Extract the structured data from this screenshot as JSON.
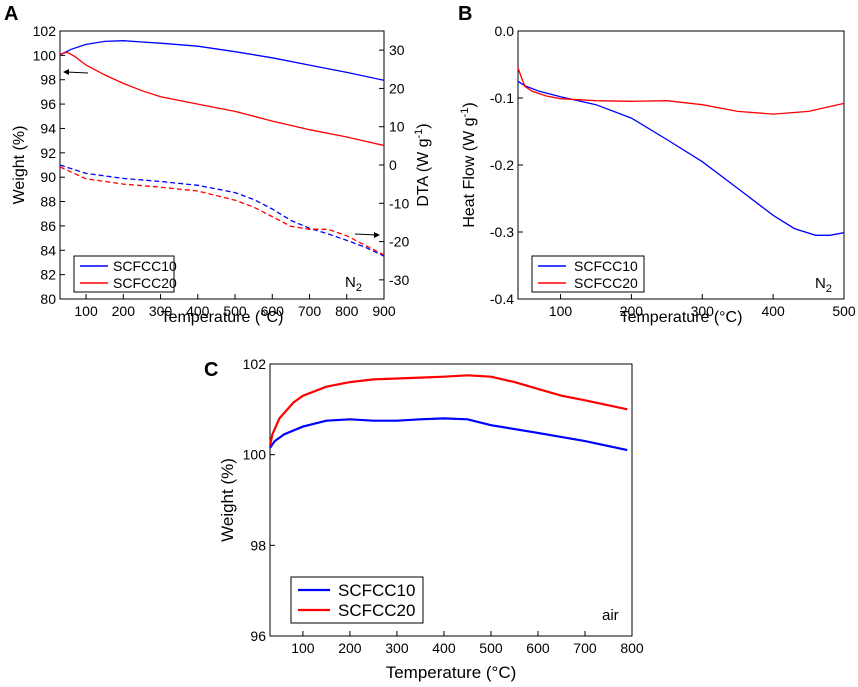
{
  "colors": {
    "series1": "#0000ff",
    "series2": "#ff0000",
    "axis": "#000000"
  },
  "chart_data": [
    {
      "panel": "A",
      "type": "line",
      "xlabel": "Temperature (°C)",
      "ylabel": "Weight (%)",
      "y2label": "DTA (W g-1)",
      "y2label_main": "DTA (W g",
      "y2label_sup": "-1",
      "y2label_end": ")",
      "xlim": [
        30,
        900
      ],
      "ylim": [
        80,
        102
      ],
      "y2lim": [
        -35,
        35
      ],
      "xticks": [
        100,
        200,
        300,
        400,
        500,
        600,
        700,
        800,
        900
      ],
      "yticks": [
        80,
        82,
        84,
        86,
        88,
        90,
        92,
        94,
        96,
        98,
        100,
        102
      ],
      "y2ticks": [
        -30,
        -20,
        -10,
        0,
        10,
        20,
        30
      ],
      "annotation": "N",
      "annotation_sub": "2",
      "legend": [
        "SCFCC10",
        "SCFCC20"
      ],
      "series": [
        {
          "name": "SCFCC10",
          "axis": "left",
          "style": "solid",
          "x": [
            30,
            60,
            100,
            150,
            200,
            250,
            300,
            400,
            500,
            600,
            700,
            800,
            900
          ],
          "values": [
            100.05,
            100.5,
            100.9,
            101.15,
            101.2,
            101.1,
            101.0,
            100.75,
            100.3,
            99.8,
            99.2,
            98.6,
            97.95
          ]
        },
        {
          "name": "SCFCC20",
          "axis": "left",
          "style": "solid",
          "x": [
            30,
            50,
            70,
            100,
            150,
            200,
            250,
            300,
            400,
            500,
            600,
            700,
            800,
            900
          ],
          "values": [
            100.1,
            100.25,
            99.9,
            99.2,
            98.4,
            97.7,
            97.1,
            96.6,
            96.0,
            95.4,
            94.6,
            93.9,
            93.3,
            92.6
          ]
        },
        {
          "name": "SCFCC10",
          "axis": "right",
          "style": "dashed",
          "x": [
            30,
            100,
            200,
            300,
            400,
            500,
            550,
            600,
            650,
            700,
            750,
            800,
            850,
            900
          ],
          "values": [
            0,
            -2.2,
            -3.5,
            -4.3,
            -5.3,
            -7.2,
            -9.0,
            -11.5,
            -14.5,
            -16.5,
            -18.0,
            -19.7,
            -21.5,
            -23.8
          ]
        },
        {
          "name": "SCFCC20",
          "axis": "right",
          "style": "dashed",
          "x": [
            30,
            100,
            200,
            300,
            400,
            500,
            550,
            600,
            650,
            700,
            750,
            800,
            850,
            900
          ],
          "values": [
            -0.5,
            -3.6,
            -5.0,
            -5.8,
            -6.8,
            -9.2,
            -11.0,
            -13.5,
            -16.0,
            -16.8,
            -16.8,
            -18.5,
            -21.0,
            -23.5
          ]
        }
      ]
    },
    {
      "panel": "B",
      "type": "line",
      "xlabel": "Temperature (°C)",
      "ylabel": "Heat Flow (W g-1)",
      "ylabel_main": "Heat Flow (W g",
      "ylabel_sup": "-1",
      "ylabel_end": ")",
      "xlim": [
        40,
        500
      ],
      "ylim": [
        -0.4,
        0.0
      ],
      "xticks": [
        100,
        200,
        300,
        400,
        500
      ],
      "yticks": [
        -0.4,
        -0.3,
        -0.2,
        -0.1,
        0.0
      ],
      "ytick_labels": [
        "-0.4",
        "-0.3",
        "-0.2",
        "-0.1",
        "0.0"
      ],
      "annotation": "N",
      "annotation_sub": "2",
      "legend": [
        "SCFCC10",
        "SCFCC20"
      ],
      "series": [
        {
          "name": "SCFCC10",
          "x": [
            40,
            50,
            70,
            100,
            150,
            200,
            250,
            300,
            350,
            400,
            430,
            460,
            480,
            500
          ],
          "values": [
            -0.075,
            -0.082,
            -0.09,
            -0.098,
            -0.11,
            -0.13,
            -0.162,
            -0.195,
            -0.235,
            -0.275,
            -0.295,
            -0.305,
            -0.305,
            -0.301
          ]
        },
        {
          "name": "SCFCC20",
          "x": [
            40,
            45,
            50,
            60,
            80,
            100,
            150,
            200,
            250,
            300,
            350,
            400,
            450,
            500
          ],
          "values": [
            -0.055,
            -0.07,
            -0.083,
            -0.09,
            -0.097,
            -0.101,
            -0.104,
            -0.105,
            -0.104,
            -0.11,
            -0.12,
            -0.124,
            -0.12,
            -0.108
          ]
        }
      ]
    },
    {
      "panel": "C",
      "type": "line",
      "xlabel": "Temperature (°C)",
      "ylabel": "Weight (%)",
      "xlim": [
        30,
        800
      ],
      "ylim": [
        96,
        102
      ],
      "xticks": [
        100,
        200,
        300,
        400,
        500,
        600,
        700,
        800
      ],
      "yticks": [
        96,
        98,
        100,
        102
      ],
      "annotation": "air",
      "legend": [
        "SCFCC10",
        "SCFCC20"
      ],
      "series": [
        {
          "name": "SCFCC10",
          "x": [
            30,
            40,
            60,
            100,
            150,
            200,
            250,
            300,
            350,
            400,
            450,
            500,
            600,
            700,
            790
          ],
          "values": [
            100.15,
            100.3,
            100.45,
            100.62,
            100.75,
            100.78,
            100.75,
            100.75,
            100.78,
            100.8,
            100.78,
            100.65,
            100.48,
            100.3,
            100.1
          ]
        },
        {
          "name": "SCFCC20",
          "x": [
            30,
            35,
            50,
            80,
            100,
            150,
            200,
            250,
            300,
            350,
            400,
            450,
            500,
            550,
            600,
            650,
            700,
            790
          ],
          "values": [
            100.2,
            100.45,
            100.8,
            101.15,
            101.3,
            101.5,
            101.6,
            101.66,
            101.68,
            101.7,
            101.72,
            101.75,
            101.72,
            101.6,
            101.45,
            101.3,
            101.2,
            101.0
          ]
        }
      ]
    }
  ]
}
